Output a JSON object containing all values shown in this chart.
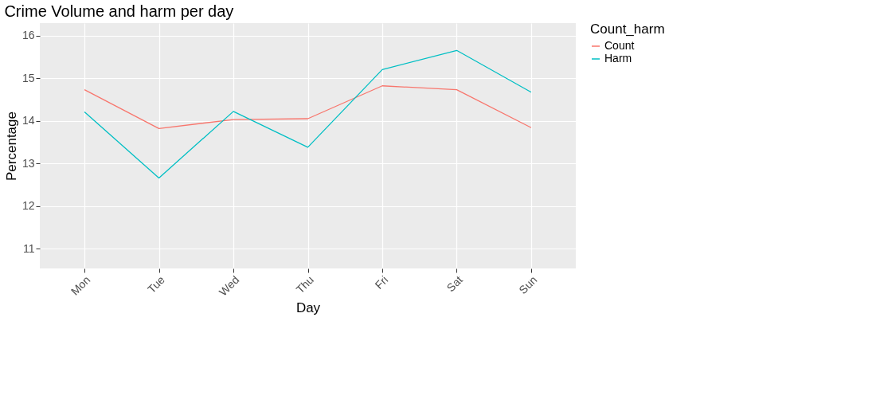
{
  "chart_data": {
    "type": "line",
    "title": "Crime Volume and harm per day",
    "xlabel": "Day",
    "ylabel": "Percentage",
    "legend_title": "Count_harm",
    "categories": [
      "Mon",
      "Tue",
      "Wed",
      "Thu",
      "Fri",
      "Sat",
      "Sun"
    ],
    "series": [
      {
        "name": "Count",
        "color": "#f8766d",
        "values": [
          14.73,
          13.82,
          14.03,
          14.05,
          14.82,
          14.73,
          13.84
        ]
      },
      {
        "name": "Harm",
        "color": "#00bfc4",
        "values": [
          14.21,
          12.66,
          14.22,
          13.38,
          15.2,
          15.65,
          14.67
        ]
      }
    ],
    "ylim": [
      10.54,
      16.29
    ],
    "yticks": [
      11,
      12,
      13,
      14,
      15,
      16
    ],
    "grid": true,
    "legend": "right",
    "marker": "none",
    "line_style": "solid"
  }
}
